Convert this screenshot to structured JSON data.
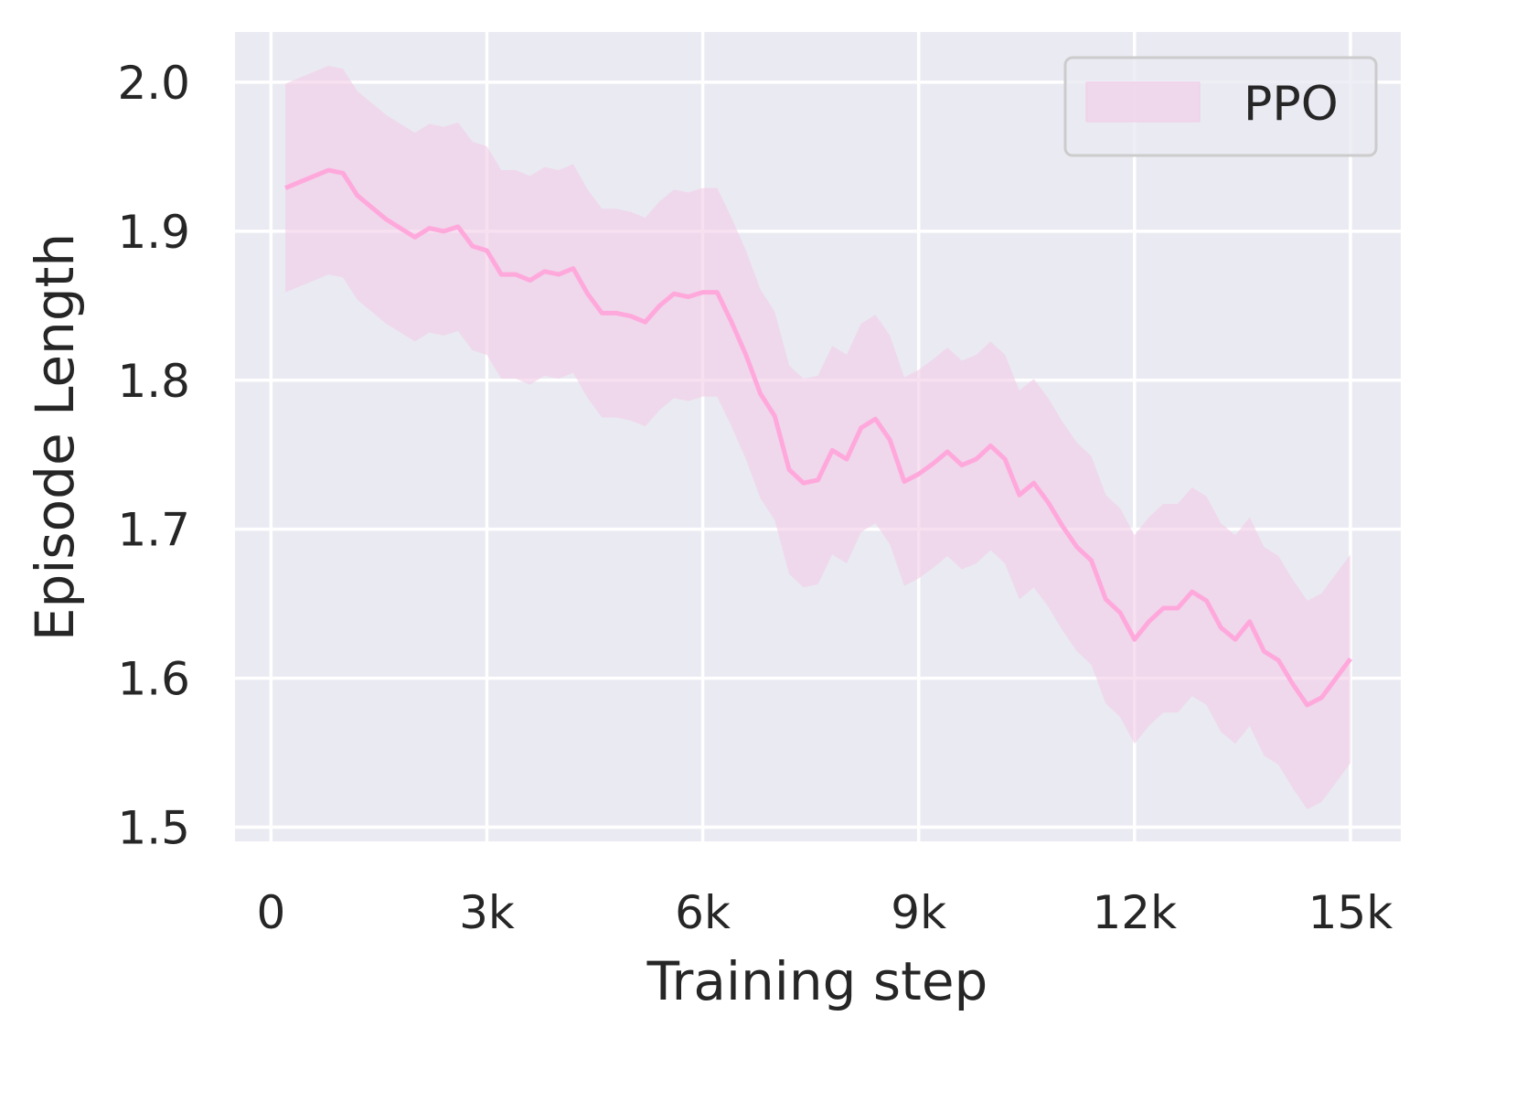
{
  "chart_data": {
    "type": "line",
    "title": "",
    "xlabel": "Training step",
    "ylabel": "Episode Length",
    "xlim": [
      -500,
      15700
    ],
    "ylim": [
      1.4905,
      2.0337
    ],
    "xticks": [
      0,
      3000,
      6000,
      9000,
      12000,
      15000
    ],
    "xtick_labels": [
      "0",
      "3k",
      "6k",
      "9k",
      "12k",
      "15k"
    ],
    "yticks": [
      1.5,
      1.6,
      1.7,
      1.8,
      1.9,
      2.0
    ],
    "ytick_labels": [
      "1.5",
      "1.6",
      "1.7",
      "1.8",
      "1.9",
      "2.0"
    ],
    "grid": true,
    "legend_position": "top-right",
    "background": "#eaeaf2",
    "series": [
      {
        "name": "PPO",
        "line_color": "#ffa8dc",
        "band_color": "#f2cbe6",
        "band_halfwidth": 0.07,
        "x": [
          200,
          800,
          1000,
          1200,
          1600,
          1800,
          2000,
          2200,
          2400,
          2600,
          2800,
          3000,
          3200,
          3400,
          3600,
          3800,
          4000,
          4200,
          4400,
          4600,
          4800,
          5000,
          5200,
          5400,
          5600,
          5800,
          6000,
          6200,
          6400,
          6600,
          6800,
          7000,
          7200,
          7400,
          7600,
          7800,
          8000,
          8200,
          8400,
          8600,
          8800,
          9000,
          9200,
          9400,
          9600,
          9800,
          10000,
          10200,
          10400,
          10600,
          10800,
          11000,
          11200,
          11400,
          11600,
          11800,
          12000,
          12200,
          12400,
          12600,
          12800,
          13000,
          13200,
          13400,
          13600,
          13800,
          14000,
          14200,
          14400,
          14600,
          14800,
          15000
        ],
        "y": [
          1.929,
          1.941,
          1.939,
          1.924,
          1.908,
          1.902,
          1.896,
          1.902,
          1.9,
          1.903,
          1.89,
          1.887,
          1.871,
          1.871,
          1.867,
          1.873,
          1.871,
          1.875,
          1.858,
          1.845,
          1.845,
          1.843,
          1.839,
          1.85,
          1.858,
          1.856,
          1.859,
          1.859,
          1.839,
          1.817,
          1.791,
          1.776,
          1.74,
          1.731,
          1.733,
          1.753,
          1.747,
          1.768,
          1.774,
          1.76,
          1.732,
          1.737,
          1.744,
          1.752,
          1.743,
          1.747,
          1.756,
          1.747,
          1.723,
          1.731,
          1.718,
          1.702,
          1.688,
          1.679,
          1.653,
          1.644,
          1.626,
          1.638,
          1.647,
          1.647,
          1.658,
          1.652,
          1.634,
          1.626,
          1.638,
          1.618,
          1.612,
          1.596,
          1.582,
          1.587,
          1.6,
          1.613
        ]
      }
    ]
  }
}
